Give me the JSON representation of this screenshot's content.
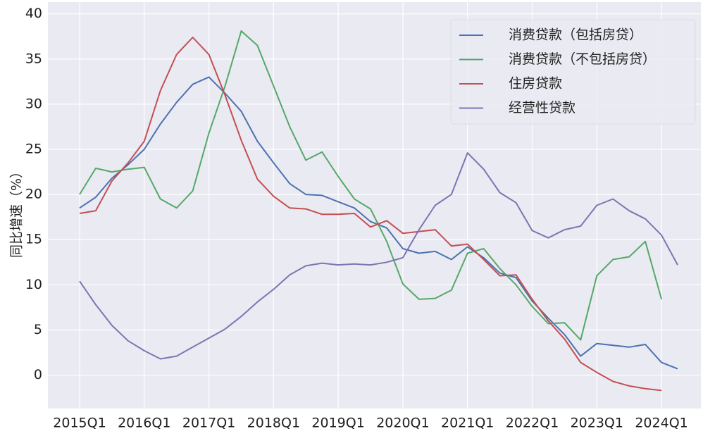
{
  "chart_data": {
    "type": "line",
    "y_label": "同比增速（%）",
    "categories": [
      "2015Q1",
      null,
      null,
      null,
      "2016Q1",
      null,
      null,
      null,
      "2017Q1",
      null,
      null,
      null,
      "2018Q1",
      null,
      null,
      null,
      "2019Q1",
      null,
      null,
      null,
      "2020Q1",
      null,
      null,
      null,
      "2021Q1",
      null,
      null,
      null,
      "2022Q1",
      null,
      null,
      null,
      "2023Q1",
      null,
      null,
      null,
      "2024Q1",
      null
    ],
    "series": [
      {
        "name": "消费贷款（包括房贷）",
        "color": "#4c72b0",
        "values": [
          18.5,
          19.7,
          21.8,
          23.3,
          25.0,
          27.8,
          30.2,
          32.2,
          33.0,
          31.2,
          29.2,
          25.9,
          23.5,
          21.2,
          20.0,
          19.9,
          19.2,
          18.5,
          17.0,
          16.3,
          14.0,
          13.5,
          13.7,
          12.8,
          14.2,
          13.0,
          11.3,
          10.8,
          8.2,
          6.3,
          4.5,
          2.1,
          3.5,
          3.3,
          3.1,
          3.4,
          1.4,
          0.7
        ]
      },
      {
        "name": "消费贷款（不包括房贷）",
        "color": "#55a868",
        "values": [
          20.0,
          22.9,
          22.5,
          22.8,
          23.0,
          19.5,
          18.5,
          20.4,
          26.8,
          32.0,
          38.1,
          36.5,
          32.0,
          27.5,
          23.8,
          24.7,
          22.0,
          19.5,
          18.4,
          14.8,
          10.1,
          8.4,
          8.5,
          9.4,
          13.5,
          14.0,
          11.8,
          10.0,
          7.6,
          5.7,
          5.8,
          3.9,
          11.0,
          12.8,
          13.1,
          14.8,
          8.4,
          null
        ]
      },
      {
        "name": "住房贷款",
        "color": "#c44e52",
        "values": [
          17.9,
          18.2,
          21.5,
          23.5,
          25.9,
          31.5,
          35.5,
          37.4,
          35.5,
          31.0,
          26.0,
          21.7,
          19.8,
          18.5,
          18.4,
          17.8,
          17.8,
          17.9,
          16.4,
          17.1,
          15.7,
          15.9,
          16.1,
          14.3,
          14.5,
          12.8,
          11.0,
          11.1,
          8.4,
          6.0,
          4.0,
          1.4,
          0.3,
          -0.7,
          -1.2,
          -1.5,
          -1.7,
          null
        ]
      },
      {
        "name": "经营性贷款",
        "color": "#8172b2",
        "values": [
          10.4,
          7.8,
          5.5,
          3.8,
          2.7,
          1.8,
          2.1,
          3.1,
          4.1,
          5.1,
          6.5,
          8.1,
          9.5,
          11.1,
          12.1,
          12.4,
          12.2,
          12.3,
          12.2,
          12.5,
          13.0,
          16.1,
          18.8,
          20.0,
          24.6,
          22.8,
          20.2,
          19.1,
          16.0,
          15.2,
          16.1,
          16.5,
          18.8,
          19.5,
          18.2,
          17.3,
          15.5,
          12.2
        ]
      }
    ],
    "ylim": [
      -3.7,
      41.3
    ],
    "yticks": [
      0,
      5,
      10,
      15,
      20,
      25,
      30,
      35,
      40
    ],
    "grid": true,
    "legend": "upper right",
    "background": "#eaeaf2"
  }
}
